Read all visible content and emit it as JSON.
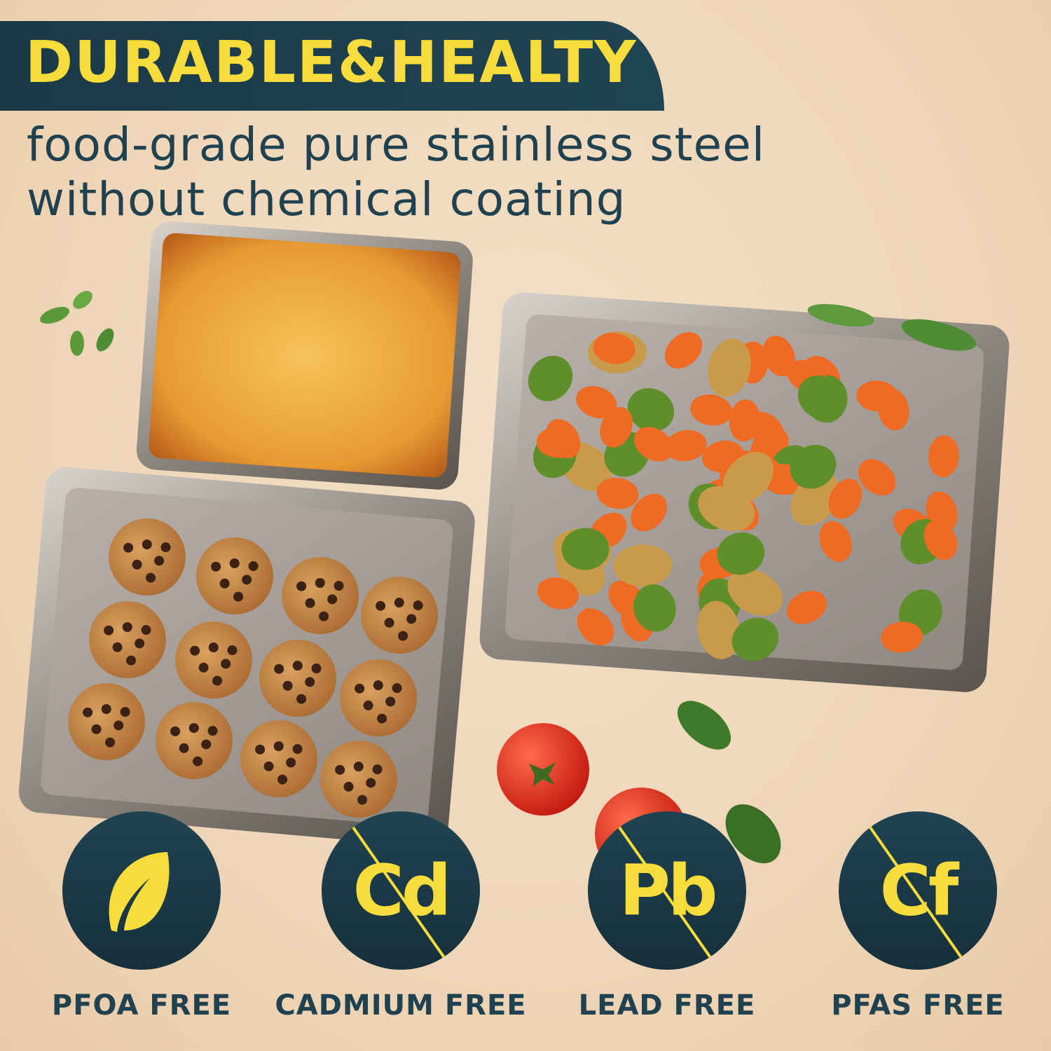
{
  "header": {
    "title": "DURABLE&HEALTY",
    "subtitle_lines": [
      "food-grade pure stainless steel",
      "without chemical coating"
    ]
  },
  "badges": [
    {
      "icon": "leaf-icon",
      "symbol": "",
      "label": "PFOA FREE",
      "crossed": false
    },
    {
      "icon": "cadmium-crossed-icon",
      "symbol": "Cd",
      "label": "CADMIUM FREE",
      "crossed": true
    },
    {
      "icon": "lead-crossed-icon",
      "symbol": "Pb",
      "label": "LEAD FREE",
      "crossed": true
    },
    {
      "icon": "pfas-crossed-icon",
      "symbol": "Cf",
      "label": "PFAS FREE",
      "crossed": true
    }
  ],
  "colors": {
    "accent": "#f8dc3c",
    "navy": "#1f4150",
    "background": "#efd6b8"
  }
}
